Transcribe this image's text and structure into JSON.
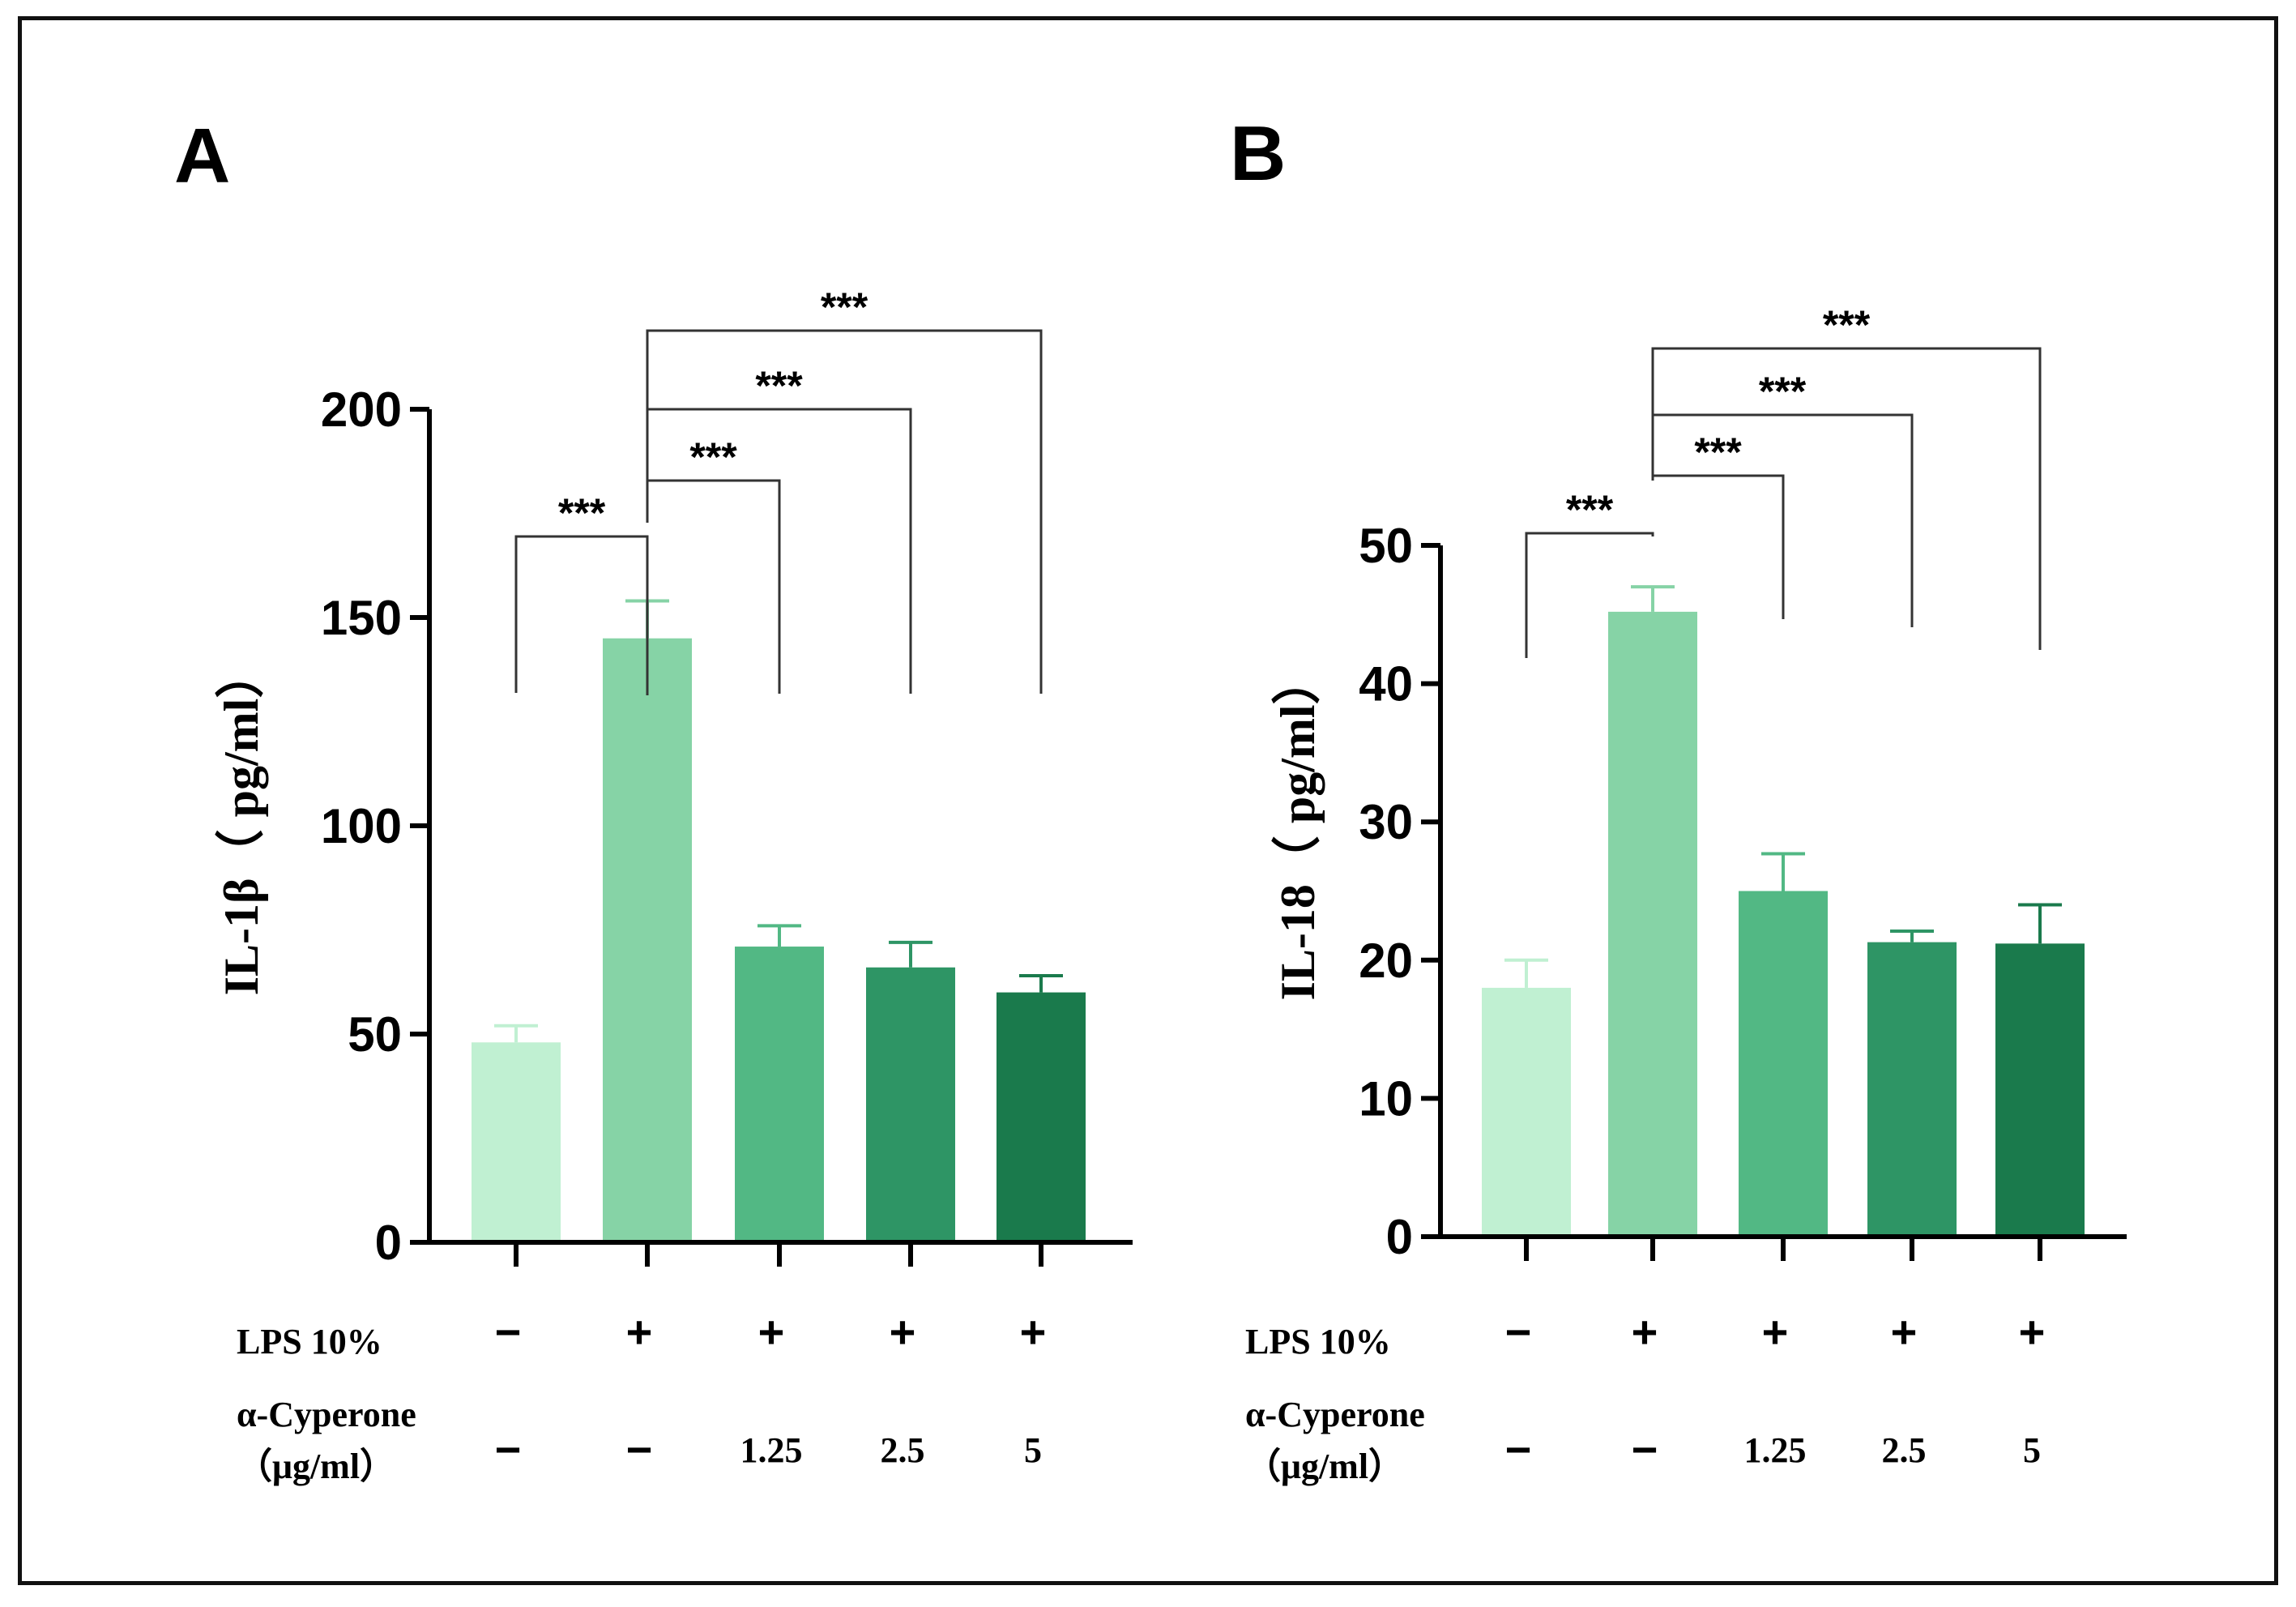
{
  "chart_data": [
    {
      "panel": "A",
      "type": "bar",
      "ylabel": "IL-1β（ pg/ml）",
      "ylim": [
        0,
        200
      ],
      "yticks": [
        0,
        50,
        100,
        150,
        200
      ],
      "values": [
        48,
        145,
        71,
        66,
        60
      ],
      "errors": [
        4,
        9,
        5,
        6,
        4
      ],
      "colors": [
        "#c0f0d2",
        "#86d3a6",
        "#52b884",
        "#2e9565",
        "#1a7a4c"
      ],
      "lps": [
        "−",
        "+",
        "+",
        "+",
        "+"
      ],
      "cyperone": [
        "−",
        "−",
        "1.25",
        "2.5",
        "5"
      ],
      "comparisons": [
        {
          "from": 0,
          "to": 1,
          "label": "***"
        },
        {
          "from": 1,
          "to": 2,
          "label": "***"
        },
        {
          "from": 1,
          "to": 3,
          "label": "***"
        },
        {
          "from": 1,
          "to": 4,
          "label": "***"
        }
      ]
    },
    {
      "panel": "B",
      "type": "bar",
      "ylabel": "IL-18（ pg/ml）",
      "ylim": [
        0,
        50
      ],
      "yticks": [
        0,
        10,
        20,
        30,
        40,
        50
      ],
      "values": [
        18,
        45.2,
        25,
        21.3,
        21.2
      ],
      "errors": [
        2.0,
        1.8,
        2.7,
        0.8,
        2.8
      ],
      "colors": [
        "#c0f0d2",
        "#86d3a6",
        "#52b884",
        "#2e9565",
        "#1a7a4c"
      ],
      "lps": [
        "−",
        "+",
        "+",
        "+",
        "+"
      ],
      "cyperone": [
        "−",
        "−",
        "1.25",
        "2.5",
        "5"
      ],
      "comparisons": [
        {
          "from": 0,
          "to": 1,
          "label": "***"
        },
        {
          "from": 1,
          "to": 2,
          "label": "***"
        },
        {
          "from": 1,
          "to": 3,
          "label": "***"
        },
        {
          "from": 1,
          "to": 4,
          "label": "***"
        }
      ]
    }
  ],
  "row_labels": {
    "lps": "LPS 10%",
    "cyperone_line1": "α-Cyperone",
    "cyperone_line2": "（μg/ml）"
  }
}
